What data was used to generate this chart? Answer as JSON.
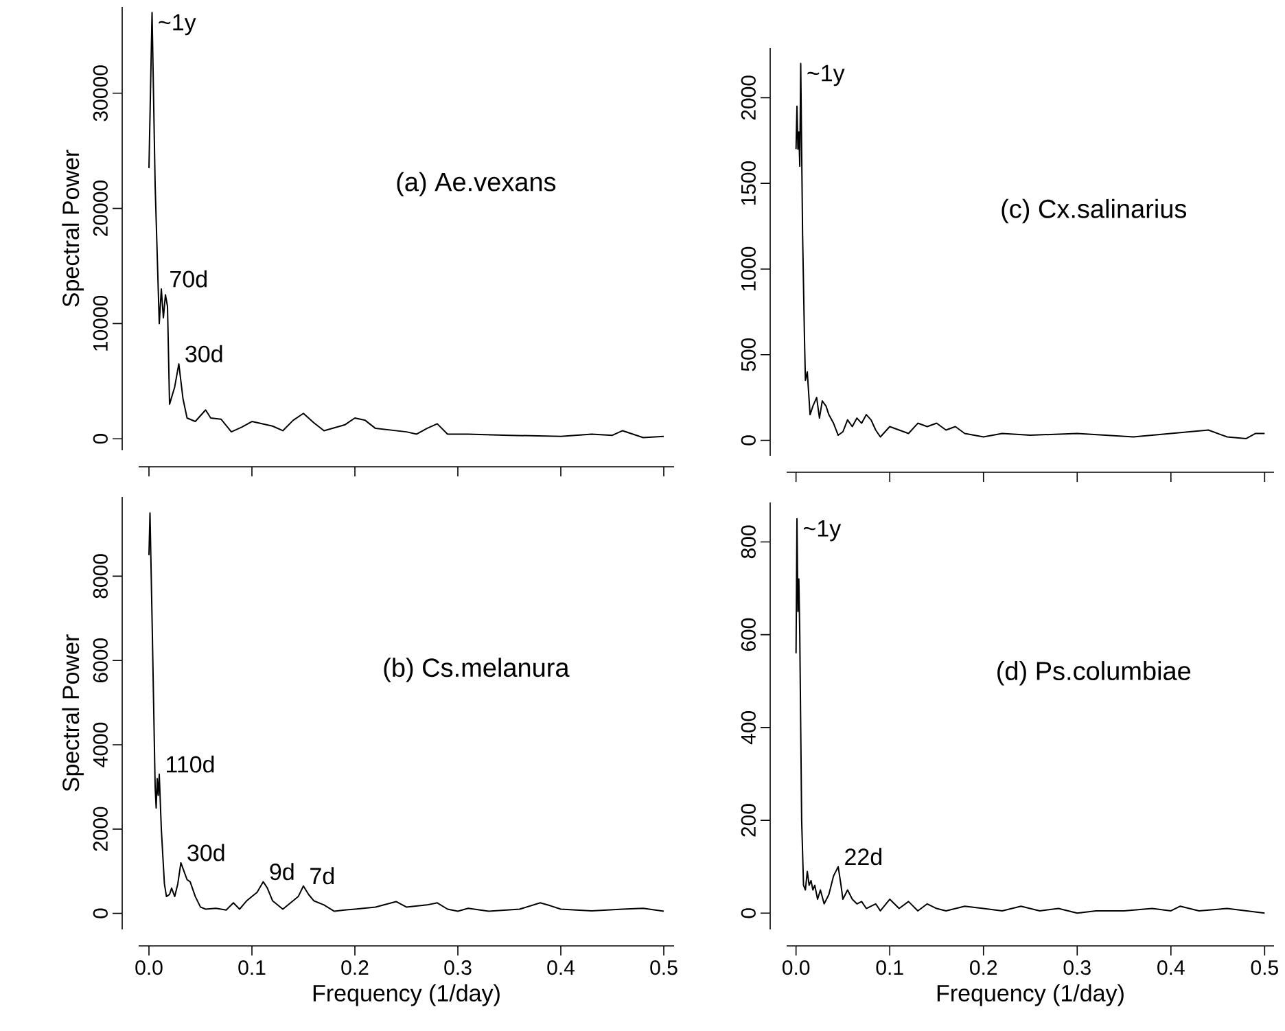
{
  "chart_data": [
    {
      "type": "line",
      "title": "(a) Ae.vexans",
      "ylabel": "Spectral Power",
      "xlim": [
        -0.01,
        0.51
      ],
      "ylim": [
        -1000,
        37500
      ],
      "xticks": [
        {
          "value": 0,
          "label": null
        },
        {
          "value": 0.1,
          "label": null
        },
        {
          "value": 0.2,
          "label": null
        },
        {
          "value": 0.3,
          "label": null
        },
        {
          "value": 0.4,
          "label": null
        },
        {
          "value": 0.5,
          "label": null
        }
      ],
      "yticks": [
        0,
        10000,
        20000,
        30000
      ],
      "tick_labels": "y",
      "color": "#000000",
      "x": [
        0.0,
        0.003,
        0.006,
        0.01,
        0.012,
        0.014,
        0.016,
        0.018,
        0.02,
        0.025,
        0.029,
        0.033,
        0.037,
        0.045,
        0.055,
        0.06,
        0.07,
        0.08,
        0.09,
        0.1,
        0.12,
        0.13,
        0.14,
        0.15,
        0.16,
        0.17,
        0.19,
        0.2,
        0.21,
        0.22,
        0.23,
        0.25,
        0.26,
        0.27,
        0.28,
        0.29,
        0.31,
        0.35,
        0.4,
        0.43,
        0.45,
        0.46,
        0.47,
        0.48,
        0.5
      ],
      "values": [
        23500,
        37000,
        22000,
        10000,
        13000,
        10500,
        12500,
        11500,
        3000,
        4500,
        6500,
        3500,
        1800,
        1500,
        2500,
        1800,
        1700,
        600,
        1000,
        1500,
        1100,
        700,
        1600,
        2200,
        1400,
        700,
        1200,
        1800,
        1600,
        900,
        800,
        600,
        400,
        900,
        1300,
        400,
        400,
        300,
        200,
        400,
        300,
        700,
        400,
        100,
        200
      ],
      "annotations": [
        {
          "text": "~1y",
          "x": 0.003,
          "y": 37000
        },
        {
          "text": "70d",
          "x": 0.014,
          "y": 13000
        },
        {
          "text": "30d",
          "x": 0.029,
          "y": 6500
        }
      ]
    },
    {
      "type": "line",
      "title": "(c) Cx.salinarius",
      "xlim": [
        -0.01,
        0.51
      ],
      "ylim": [
        -90,
        2290
      ],
      "xticks": [
        {
          "value": 0,
          "label": null
        },
        {
          "value": 0.1,
          "label": null
        },
        {
          "value": 0.2,
          "label": null
        },
        {
          "value": 0.3,
          "label": null
        },
        {
          "value": 0.4,
          "label": null
        },
        {
          "value": 0.5,
          "label": null
        }
      ],
      "yticks": [
        0,
        500,
        1000,
        1500,
        2000
      ],
      "tick_labels": "y",
      "color": "#000000",
      "x": [
        0.0,
        0.001,
        0.002,
        0.003,
        0.004,
        0.005,
        0.007,
        0.009,
        0.01,
        0.012,
        0.015,
        0.018,
        0.022,
        0.025,
        0.028,
        0.032,
        0.035,
        0.04,
        0.045,
        0.05,
        0.055,
        0.06,
        0.065,
        0.07,
        0.075,
        0.08,
        0.085,
        0.09,
        0.1,
        0.11,
        0.12,
        0.13,
        0.14,
        0.15,
        0.16,
        0.17,
        0.18,
        0.19,
        0.2,
        0.22,
        0.25,
        0.3,
        0.33,
        0.36,
        0.4,
        0.44,
        0.46,
        0.48,
        0.49,
        0.5
      ],
      "values": [
        1700,
        1950,
        1700,
        1800,
        1600,
        2200,
        1200,
        600,
        350,
        400,
        150,
        200,
        250,
        130,
        230,
        200,
        150,
        100,
        30,
        50,
        120,
        80,
        130,
        100,
        150,
        120,
        60,
        20,
        80,
        60,
        40,
        100,
        80,
        100,
        60,
        80,
        40,
        30,
        20,
        40,
        30,
        40,
        30,
        20,
        40,
        60,
        20,
        10,
        40,
        40
      ],
      "annotations": [
        {
          "text": "~1y",
          "x": 0.005,
          "y": 2200
        }
      ]
    },
    {
      "type": "line",
      "title": "(b) Cs.melanura",
      "xlabel": "Frequency (1/day)",
      "ylabel": "Spectral Power",
      "xlim": [
        -0.01,
        0.51
      ],
      "ylim": [
        -380,
        9880
      ],
      "xticks": [
        {
          "value": 0,
          "label": "0.0"
        },
        0.1,
        0.2,
        0.3,
        0.4,
        0.5
      ],
      "yticks": [
        0,
        2000,
        4000,
        6000,
        8000
      ],
      "color": "#000000",
      "x": [
        0.0,
        0.001,
        0.003,
        0.006,
        0.007,
        0.008,
        0.009,
        0.01,
        0.012,
        0.015,
        0.017,
        0.02,
        0.022,
        0.025,
        0.028,
        0.031,
        0.034,
        0.037,
        0.04,
        0.045,
        0.05,
        0.055,
        0.065,
        0.075,
        0.082,
        0.088,
        0.095,
        0.1,
        0.105,
        0.111,
        0.115,
        0.12,
        0.13,
        0.14,
        0.145,
        0.15,
        0.155,
        0.16,
        0.17,
        0.18,
        0.19,
        0.2,
        0.22,
        0.24,
        0.25,
        0.27,
        0.28,
        0.29,
        0.3,
        0.31,
        0.33,
        0.36,
        0.38,
        0.39,
        0.4,
        0.43,
        0.46,
        0.48,
        0.5
      ],
      "values": [
        8500,
        9500,
        7000,
        3000,
        2500,
        3200,
        2800,
        3300,
        2000,
        700,
        400,
        450,
        600,
        400,
        700,
        1200,
        1000,
        800,
        750,
        400,
        150,
        100,
        120,
        80,
        250,
        100,
        300,
        400,
        500,
        750,
        600,
        300,
        100,
        300,
        400,
        650,
        450,
        300,
        200,
        50,
        80,
        100,
        150,
        280,
        150,
        200,
        250,
        100,
        50,
        120,
        50,
        100,
        250,
        180,
        100,
        60,
        100,
        120,
        50
      ],
      "annotations": [
        {
          "text": "110d",
          "x": 0.01,
          "y": 3300
        },
        {
          "text": "30d",
          "x": 0.031,
          "y": 1200
        },
        {
          "text": "9d",
          "x": 0.111,
          "y": 750
        },
        {
          "text": "7d",
          "x": 0.15,
          "y": 650
        }
      ]
    },
    {
      "type": "line",
      "title": "(d) Ps.columbiae",
      "xlabel": "Frequency (1/day)",
      "xlim": [
        -0.01,
        0.51
      ],
      "ylim": [
        -35,
        885
      ],
      "xticks": [
        {
          "value": 0,
          "label": "0.0"
        },
        0.1,
        0.2,
        0.3,
        0.4,
        0.5
      ],
      "yticks": [
        0,
        200,
        400,
        600,
        800
      ],
      "color": "#000000",
      "x": [
        0.0,
        0.001,
        0.002,
        0.003,
        0.004,
        0.006,
        0.008,
        0.01,
        0.012,
        0.014,
        0.016,
        0.018,
        0.02,
        0.023,
        0.026,
        0.03,
        0.035,
        0.04,
        0.045,
        0.048,
        0.05,
        0.055,
        0.06,
        0.065,
        0.07,
        0.075,
        0.085,
        0.09,
        0.1,
        0.11,
        0.12,
        0.13,
        0.14,
        0.15,
        0.16,
        0.18,
        0.2,
        0.22,
        0.24,
        0.26,
        0.28,
        0.3,
        0.32,
        0.35,
        0.38,
        0.4,
        0.41,
        0.43,
        0.46,
        0.48,
        0.5
      ],
      "values": [
        560,
        850,
        650,
        720,
        600,
        200,
        60,
        50,
        90,
        60,
        70,
        50,
        60,
        30,
        50,
        20,
        40,
        80,
        100,
        60,
        30,
        50,
        30,
        20,
        25,
        10,
        20,
        5,
        30,
        10,
        25,
        5,
        20,
        10,
        5,
        15,
        10,
        5,
        15,
        5,
        10,
        0,
        5,
        5,
        10,
        5,
        15,
        5,
        10,
        5,
        0
      ],
      "annotations": [
        {
          "text": "~1y",
          "x": 0.001,
          "y": 850
        },
        {
          "text": "22d",
          "x": 0.045,
          "y": 100
        }
      ]
    }
  ]
}
